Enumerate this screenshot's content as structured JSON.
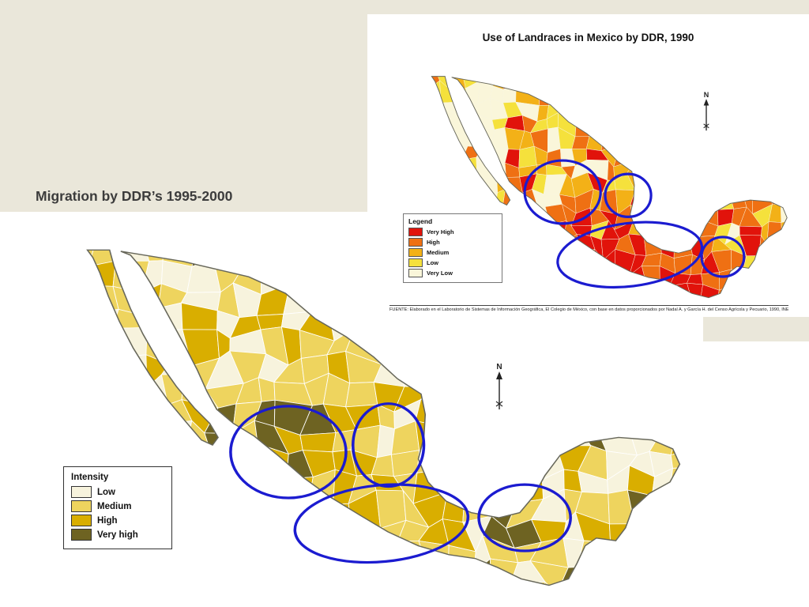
{
  "slide": {
    "background_color": "#eae7da",
    "title": "Migration by DDR’s 1995-2000"
  },
  "landraces_map": {
    "title": "Use of Landraces in Mexico by DDR, 1990",
    "north_label": "N",
    "annotation_color": "#1b1bd0",
    "legend": {
      "title": "Legend",
      "items": [
        {
          "label": "Very High",
          "color": "#e1130b"
        },
        {
          "label": "High",
          "color": "#ef7013"
        },
        {
          "label": "Medium",
          "color": "#f3b117"
        },
        {
          "label": "Low",
          "color": "#f5e13c"
        },
        {
          "label": "Very Low",
          "color": "#faf6da"
        }
      ]
    },
    "source": "FUENTE: Elaborado en el Laboratorio de Sistemas de Información Geográfica, El Colegio de México, con base en datos proporcionados por Nadal A. y García H. del Censo Agrícola y Pecuario, 1990, INEGI."
  },
  "migration_map": {
    "north_label": "N",
    "annotation_color": "#1b1bd0",
    "legend": {
      "title": "Intensity",
      "items": [
        {
          "label": "Low",
          "color": "#f7f3dd"
        },
        {
          "label": "Medium",
          "color": "#eed45e"
        },
        {
          "label": "High",
          "color": "#d9ae00"
        },
        {
          "label": "Very high",
          "color": "#6e6322"
        }
      ]
    }
  }
}
